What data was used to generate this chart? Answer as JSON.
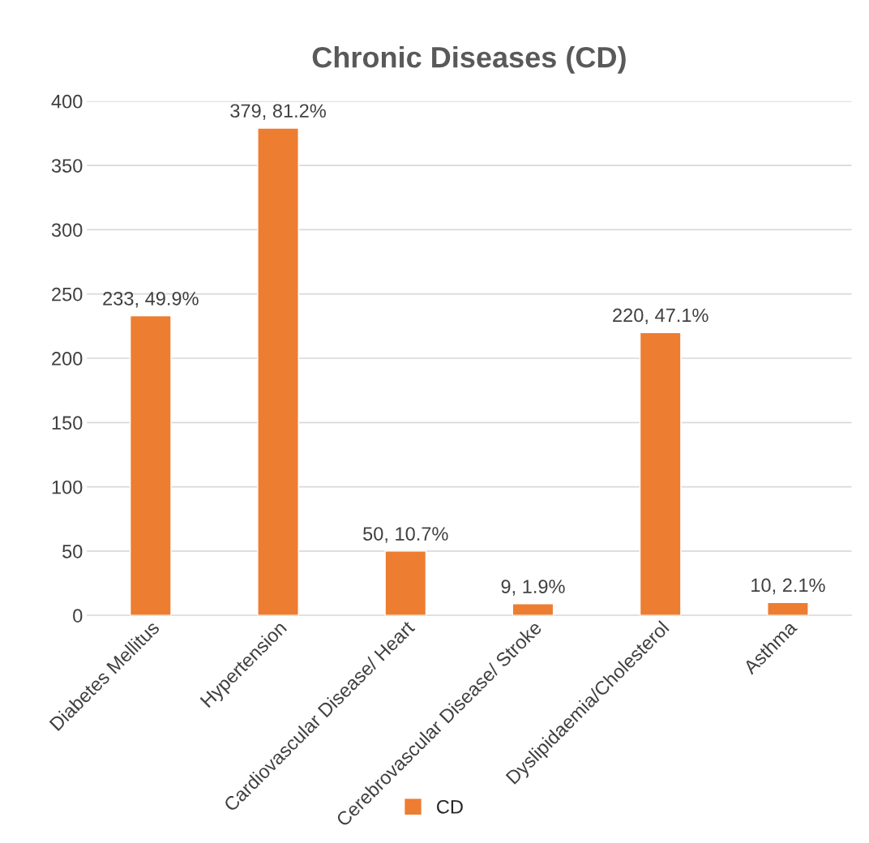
{
  "chart_data": {
    "type": "bar",
    "title": "Chronic Diseases (CD)",
    "categories": [
      "Diabetes Mellitus",
      "Hypertension",
      "Cardiovascular Disease/ Heart",
      "Cerebrovascular Disease/ Stroke",
      "Dyslipidaemia/Cholesterol",
      "Asthma"
    ],
    "series": [
      {
        "name": "CD",
        "color": "#ed7d31",
        "values": [
          233,
          379,
          50,
          9,
          220,
          10
        ],
        "value_labels": [
          "233, 49.9%",
          "379, 81.2%",
          "50, 10.7%",
          "9, 1.9%",
          "220, 47.1%",
          "10, 2.1%"
        ]
      }
    ],
    "ylim": [
      0,
      400
    ],
    "yticks": [
      0,
      50,
      100,
      150,
      200,
      250,
      300,
      350,
      400
    ],
    "grid": "y",
    "legend": "bottom"
  }
}
